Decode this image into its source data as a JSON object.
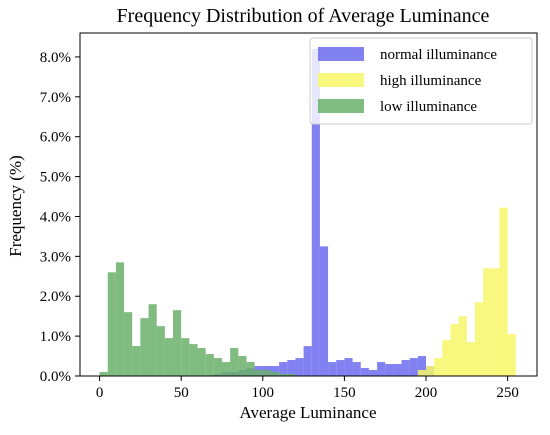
{
  "chart_data": {
    "type": "bar",
    "title": "Frequency Distribution of Average Luminance",
    "xlabel": "Average Luminance",
    "ylabel": "Frequency (%)",
    "xlim": [
      -12,
      268
    ],
    "ylim": [
      0,
      8.6
    ],
    "x_ticks": [
      0,
      50,
      100,
      150,
      200,
      250
    ],
    "y_ticks": [
      0,
      1,
      2,
      3,
      4,
      5,
      6,
      7,
      8
    ],
    "y_tick_labels": [
      "0.0%",
      "1.0%",
      "2.0%",
      "3.0%",
      "4.0%",
      "5.0%",
      "6.0%",
      "7.0%",
      "8.0%"
    ],
    "bin_width": 5,
    "grid": false,
    "legend_position": "top-right",
    "series": [
      {
        "name": "normal illuminance",
        "color": "#6b6bef",
        "bin_starts": [
          70,
          75,
          80,
          85,
          90,
          95,
          100,
          105,
          110,
          115,
          120,
          125,
          130,
          135,
          140,
          145,
          150,
          155,
          160,
          165,
          170,
          175,
          180,
          185,
          190,
          195,
          200
        ],
        "values": [
          0.05,
          0.1,
          0.1,
          0.15,
          0.2,
          0.25,
          0.25,
          0.25,
          0.35,
          0.4,
          0.45,
          0.75,
          8.2,
          3.25,
          0.35,
          0.4,
          0.45,
          0.35,
          0.2,
          0.15,
          0.35,
          0.3,
          0.3,
          0.4,
          0.45,
          0.5,
          0.25
        ]
      },
      {
        "name": "high illuminance",
        "color": "#f7f768",
        "bin_starts": [
          195,
          200,
          205,
          210,
          215,
          220,
          225,
          230,
          235,
          240,
          245,
          250
        ],
        "values": [
          0.15,
          0.25,
          0.45,
          0.9,
          1.3,
          1.5,
          0.85,
          1.85,
          2.7,
          2.7,
          4.22,
          1.05
        ]
      },
      {
        "name": "low illuminance",
        "color": "#6aaf6a",
        "bin_starts": [
          0,
          5,
          10,
          15,
          20,
          25,
          30,
          35,
          40,
          45,
          50,
          55,
          60,
          65,
          70,
          75,
          80,
          85,
          90,
          95,
          100,
          105,
          110,
          115
        ],
        "values": [
          0.1,
          2.6,
          2.85,
          1.6,
          0.75,
          1.45,
          1.8,
          1.25,
          0.95,
          1.65,
          0.95,
          0.8,
          0.7,
          0.55,
          0.45,
          0.35,
          0.7,
          0.5,
          0.35,
          0.15,
          0.15,
          0.1,
          0.05,
          0.05
        ]
      }
    ]
  }
}
